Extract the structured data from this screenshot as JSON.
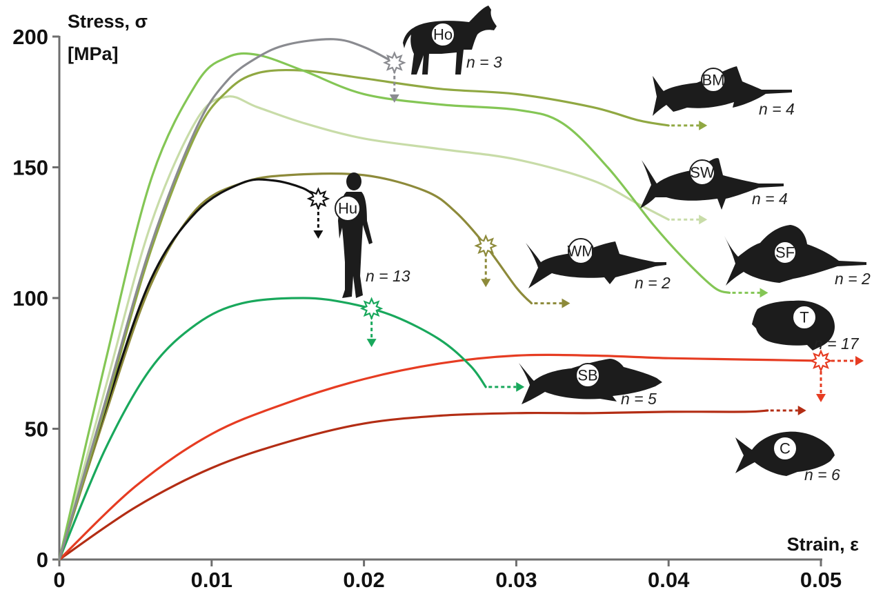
{
  "chart_data": {
    "type": "line",
    "title": "",
    "xlabel": "Strain, ε",
    "ylabel_line1": "Stress, σ",
    "ylabel_line2": "[MPa]",
    "xlim": [
      0,
      0.05
    ],
    "ylim": [
      0,
      200
    ],
    "xticks": [
      0,
      0.01,
      0.02,
      0.03,
      0.04,
      0.05
    ],
    "xtick_labels": [
      "0",
      "0.01",
      "0.02",
      "0.03",
      "0.04",
      "0.05"
    ],
    "yticks": [
      0,
      50,
      100,
      150,
      200
    ],
    "ytick_labels": [
      "0",
      "50",
      "100",
      "150",
      "200"
    ],
    "grid": false,
    "legend": "none",
    "series": [
      {
        "key": "Ho",
        "color": "#8a8b90",
        "n_label": "n = 3",
        "failure": "break",
        "points": [
          [
            0,
            0
          ],
          [
            0.003,
            60
          ],
          [
            0.006,
            120
          ],
          [
            0.009,
            165
          ],
          [
            0.011,
            183
          ],
          [
            0.013,
            192
          ],
          [
            0.015,
            197
          ],
          [
            0.018,
            199
          ],
          [
            0.02,
            196
          ],
          [
            0.022,
            190
          ]
        ]
      },
      {
        "key": "BM",
        "color": "#90a842",
        "n_label": "n = 4",
        "failure": "continue",
        "points": [
          [
            0,
            0
          ],
          [
            0.003,
            58
          ],
          [
            0.006,
            118
          ],
          [
            0.009,
            163
          ],
          [
            0.011,
            179
          ],
          [
            0.013,
            186
          ],
          [
            0.016,
            187
          ],
          [
            0.02,
            184
          ],
          [
            0.025,
            180
          ],
          [
            0.03,
            178
          ],
          [
            0.035,
            173
          ],
          [
            0.038,
            168
          ],
          [
            0.04,
            166
          ]
        ]
      },
      {
        "key": "SW",
        "color": "#c8dca8",
        "n_label": "n = 4",
        "failure": "continue",
        "points": [
          [
            0,
            0
          ],
          [
            0.003,
            65
          ],
          [
            0.006,
            128
          ],
          [
            0.009,
            168
          ],
          [
            0.011,
            177
          ],
          [
            0.013,
            173
          ],
          [
            0.016,
            167
          ],
          [
            0.02,
            161
          ],
          [
            0.025,
            157
          ],
          [
            0.03,
            153
          ],
          [
            0.035,
            145
          ],
          [
            0.038,
            136
          ],
          [
            0.04,
            130
          ]
        ]
      },
      {
        "key": "SF",
        "color": "#84c655",
        "n_label": "n = 2",
        "failure": "continue",
        "points": [
          [
            0,
            0
          ],
          [
            0.003,
            75
          ],
          [
            0.006,
            145
          ],
          [
            0.009,
            182
          ],
          [
            0.011,
            192
          ],
          [
            0.013,
            193
          ],
          [
            0.016,
            187
          ],
          [
            0.02,
            178
          ],
          [
            0.025,
            174
          ],
          [
            0.03,
            172
          ],
          [
            0.033,
            167
          ],
          [
            0.036,
            150
          ],
          [
            0.039,
            128
          ],
          [
            0.041,
            115
          ],
          [
            0.043,
            104
          ],
          [
            0.044,
            102
          ]
        ]
      },
      {
        "key": "WM",
        "color": "#8d8a3a",
        "n_label": "n = 2",
        "failure": "break",
        "points": [
          [
            0,
            0
          ],
          [
            0.003,
            55
          ],
          [
            0.006,
            105
          ],
          [
            0.009,
            134
          ],
          [
            0.012,
            144
          ],
          [
            0.015,
            147
          ],
          [
            0.02,
            147
          ],
          [
            0.024,
            141
          ],
          [
            0.026,
            133
          ],
          [
            0.028,
            120
          ],
          [
            0.03,
            104
          ],
          [
            0.031,
            98
          ]
        ]
      },
      {
        "key": "Hu",
        "color": "#111111",
        "n_label": "n = 13",
        "failure": "break",
        "points": [
          [
            0,
            0
          ],
          [
            0.003,
            57
          ],
          [
            0.006,
            107
          ],
          [
            0.009,
            133
          ],
          [
            0.012,
            144
          ],
          [
            0.014,
            145
          ],
          [
            0.016,
            142
          ],
          [
            0.017,
            138
          ]
        ]
      },
      {
        "key": "SB",
        "color": "#19a85c",
        "n_label": "n = 5",
        "failure": "break",
        "points": [
          [
            0,
            0
          ],
          [
            0.003,
            42
          ],
          [
            0.006,
            73
          ],
          [
            0.009,
            90
          ],
          [
            0.012,
            98
          ],
          [
            0.016,
            100
          ],
          [
            0.019,
            98
          ],
          [
            0.022,
            93
          ],
          [
            0.025,
            84
          ],
          [
            0.027,
            74
          ],
          [
            0.028,
            66
          ]
        ]
      },
      {
        "key": "T",
        "color": "#e63c22",
        "n_label": "n = 17",
        "failure": "break",
        "points": [
          [
            0,
            0
          ],
          [
            0.005,
            28
          ],
          [
            0.01,
            48
          ],
          [
            0.015,
            60
          ],
          [
            0.02,
            69
          ],
          [
            0.025,
            75
          ],
          [
            0.03,
            78
          ],
          [
            0.035,
            78
          ],
          [
            0.04,
            77
          ],
          [
            0.045,
            76.5
          ],
          [
            0.05,
            76
          ]
        ]
      },
      {
        "key": "C",
        "color": "#b32d14",
        "n_label": "n = 6",
        "failure": "continue",
        "points": [
          [
            0,
            0
          ],
          [
            0.005,
            20
          ],
          [
            0.01,
            35
          ],
          [
            0.015,
            45
          ],
          [
            0.02,
            52
          ],
          [
            0.025,
            55
          ],
          [
            0.03,
            56
          ],
          [
            0.035,
            56
          ],
          [
            0.04,
            56.5
          ],
          [
            0.045,
            56.5
          ],
          [
            0.0465,
            57
          ]
        ]
      }
    ]
  },
  "icons": {
    "horse": "horse-silhouette-icon",
    "human": "human-silhouette-icon",
    "fish": "fish-silhouette-icon",
    "break_marker": "star-burst-icon",
    "arrow": "dashed-arrow-icon"
  }
}
